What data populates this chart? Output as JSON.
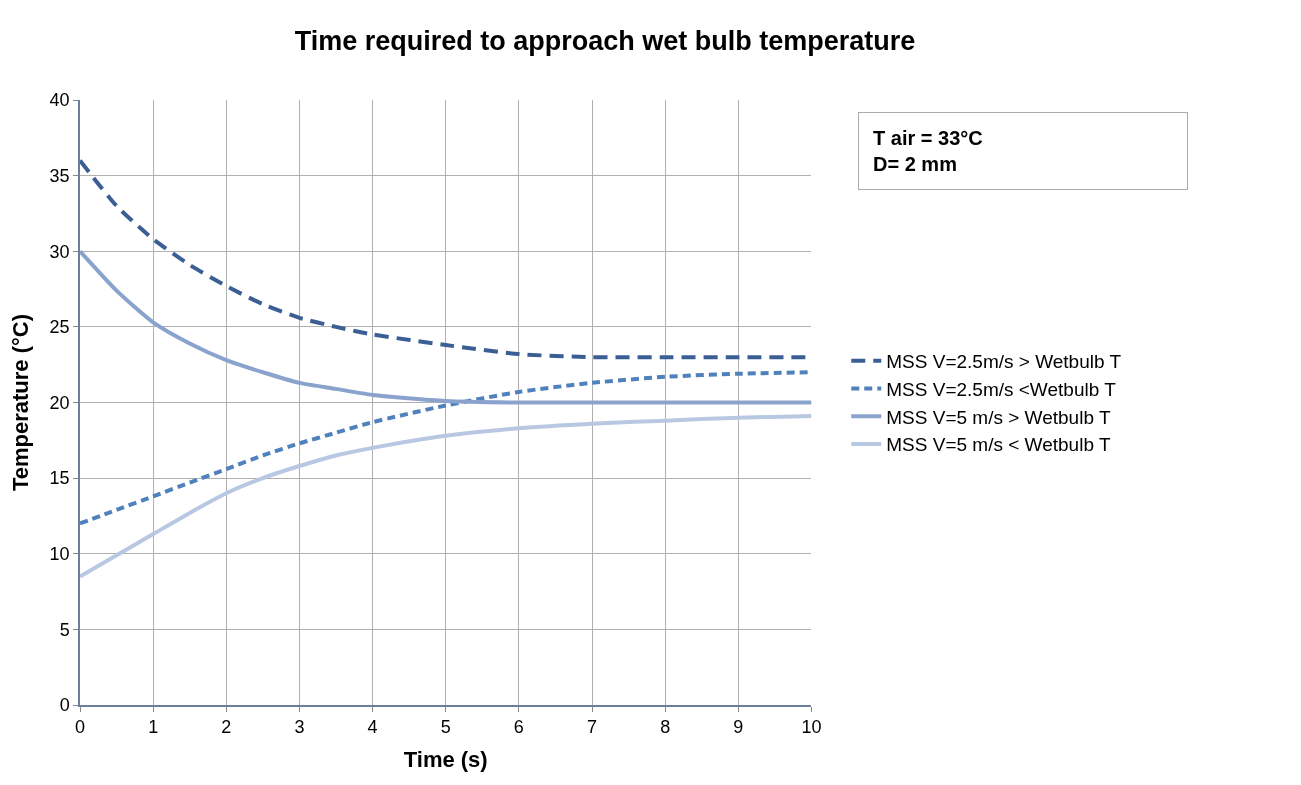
{
  "chart_data": {
    "type": "line",
    "title": "Time required to approach wet bulb temperature",
    "xlabel": "Time (s)",
    "ylabel": "Temperature (°C)",
    "x": [
      0,
      0.5,
      1,
      1.5,
      2,
      2.5,
      3,
      3.5,
      4,
      5,
      6,
      7,
      8,
      9,
      10
    ],
    "series": [
      {
        "name": "MSS V=2.5m/s > Wetbulb T",
        "color": "#3b5f94",
        "line_style": "dashed",
        "values": [
          36,
          33,
          30.8,
          29.1,
          27.7,
          26.5,
          25.6,
          25.0,
          24.5,
          23.8,
          23.2,
          23.0,
          23.0,
          23.0,
          23.0
        ]
      },
      {
        "name": "MSS V=2.5m/s <Wetbulb T",
        "color": "#4f81bd",
        "line_style": "dashed",
        "values": [
          12,
          12.9,
          13.8,
          14.7,
          15.6,
          16.5,
          17.3,
          18.0,
          18.7,
          19.8,
          20.7,
          21.3,
          21.7,
          21.9,
          22
        ]
      },
      {
        "name": "MSS V=5 m/s > Wetbulb T",
        "color": "#8aa3cd",
        "line_style": "solid",
        "values": [
          30,
          27.4,
          25.3,
          23.9,
          22.8,
          22.0,
          21.3,
          20.9,
          20.5,
          20.1,
          20,
          20,
          20,
          20,
          20
        ]
      },
      {
        "name": "MSS V=5 m/s < Wetbulb T",
        "color": "#b9c8e2",
        "line_style": "solid",
        "values": [
          8.5,
          9.9,
          11.3,
          12.7,
          14.0,
          15.0,
          15.8,
          16.5,
          17.0,
          17.8,
          18.3,
          18.6,
          18.8,
          19.0,
          19.1
        ]
      }
    ],
    "xlim": [
      0,
      10
    ],
    "xticks": [
      0,
      1,
      2,
      3,
      4,
      5,
      6,
      7,
      8,
      9,
      10
    ],
    "ylim": [
      0,
      40
    ],
    "yticks": [
      0,
      5,
      10,
      15,
      20,
      25,
      30,
      35,
      40
    ],
    "annotations": [
      "T air = 33°C",
      "D= 2 mm"
    ],
    "grid": true,
    "legend": "right",
    "marker": "none"
  }
}
